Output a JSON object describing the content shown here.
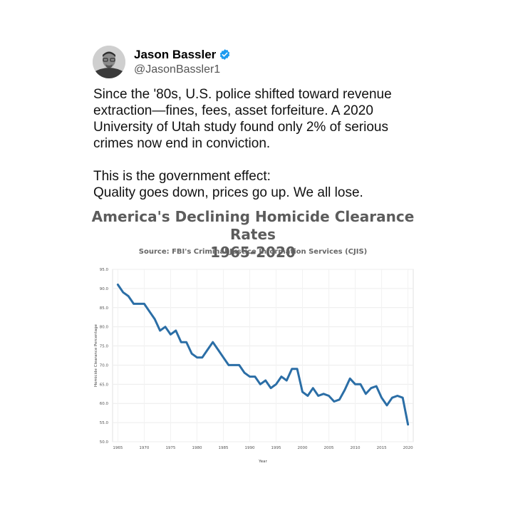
{
  "tweet": {
    "author_name": "Jason Bassler",
    "handle": "@JasonBassler1",
    "verified": true,
    "avatar_icon": "profile-photo",
    "verified_icon": "verified-badge-icon",
    "accent_color": "#1d9bf0",
    "text_lines": [
      "Since the '80s, U.S. police shifted toward revenue",
      "extraction—fines, fees, asset forfeiture. A 2020",
      "University of Utah study found only 2% of serious",
      "crimes now end in conviction.",
      "",
      "This is the government effect:",
      "Quality goes down, prices go up. We all lose."
    ]
  },
  "chart_data": {
    "type": "line",
    "title_line1": "America's Declining Homicide Clearance Rates",
    "title_line2": "1965-2020",
    "subtitle": "Source: FBI's Criminal Justice Information Services (CJIS)",
    "xlabel": "Year",
    "ylabel": "Homicide Clearance Percentage",
    "xlim": [
      1964,
      2021
    ],
    "ylim": [
      50,
      95
    ],
    "x_ticks": [
      1965,
      1970,
      1975,
      1980,
      1985,
      1990,
      1995,
      2000,
      2005,
      2010,
      2015,
      2020
    ],
    "y_ticks": [
      "95.0",
      "90.0",
      "85.0",
      "80.0",
      "75.0",
      "70.0",
      "65.0",
      "60.0",
      "55.0",
      "50.0"
    ],
    "grid": true,
    "line_color": "#2b6ea6",
    "series": [
      {
        "x": [
          1965,
          1966,
          1967,
          1968,
          1969,
          1970,
          1971,
          1972,
          1973,
          1974,
          1975,
          1976,
          1977,
          1978,
          1979,
          1980,
          1981,
          1982,
          1983,
          1984,
          1985,
          1986,
          1987,
          1988,
          1989,
          1990,
          1991,
          1992,
          1993,
          1994,
          1995,
          1996,
          1997,
          1998,
          1999,
          2000,
          2001,
          2002,
          2003,
          2004,
          2005,
          2006,
          2007,
          2008,
          2009,
          2010,
          2011,
          2012,
          2013,
          2014,
          2015,
          2016,
          2017,
          2018,
          2019,
          2020
        ],
        "values": [
          91.0,
          89.0,
          88.0,
          86.0,
          86.0,
          86.0,
          84.0,
          82.0,
          79.0,
          80.0,
          78.0,
          79.0,
          76.0,
          76.0,
          73.0,
          72.0,
          72.0,
          74.0,
          76.0,
          74.0,
          72.0,
          70.0,
          70.0,
          70.0,
          68.0,
          67.0,
          67.0,
          65.0,
          66.0,
          64.0,
          65.0,
          67.0,
          66.0,
          69.0,
          69.0,
          63.0,
          62.0,
          64.0,
          62.0,
          62.5,
          62.0,
          60.5,
          61.0,
          63.5,
          66.5,
          65.0,
          65.0,
          62.5,
          64.0,
          64.5,
          61.5,
          59.5,
          61.5,
          62.0,
          61.5,
          54.5
        ]
      }
    ]
  }
}
